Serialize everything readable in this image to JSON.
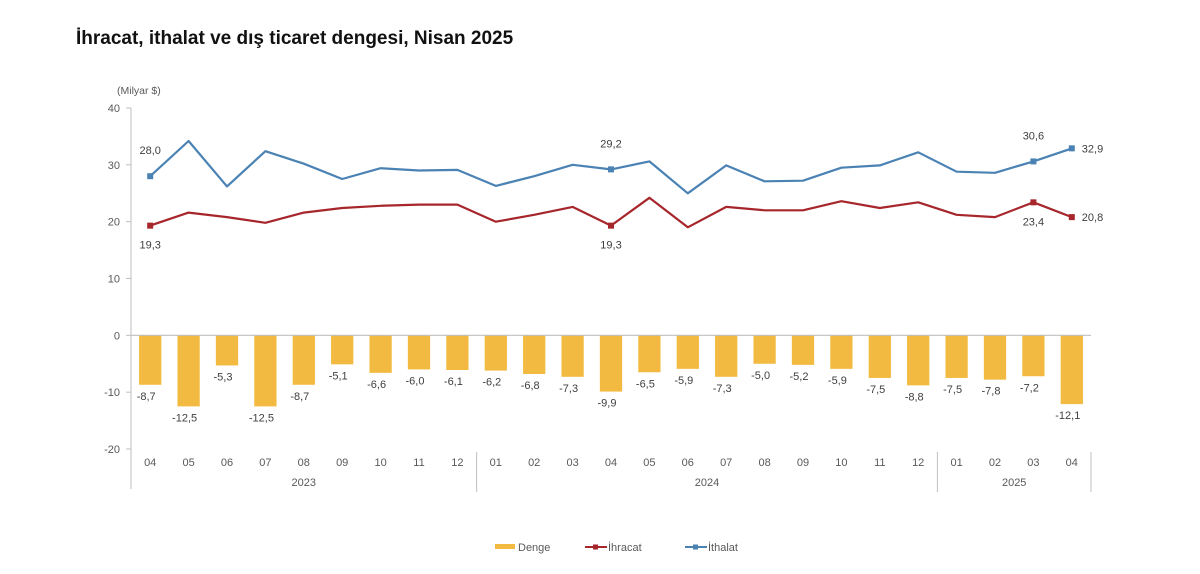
{
  "title": "İhracat, ithalat ve dış ticaret dengesi, Nisan 2025",
  "chart_data": {
    "type": "bar+line",
    "title": "İhracat, ithalat ve dış ticaret dengesi, Nisan 2025",
    "ylabel": "(Milyar $)",
    "xlabel": "",
    "ylim": [
      -20,
      40
    ],
    "yticks": [
      "40",
      "30",
      "20",
      "10",
      "0",
      "-10",
      "-20"
    ],
    "ytick_values": [
      40,
      30,
      20,
      10,
      0,
      -10,
      -20
    ],
    "grid": false,
    "legend_position": "bottom-center",
    "categories": [
      "04",
      "05",
      "06",
      "07",
      "08",
      "09",
      "10",
      "11",
      "12",
      "01",
      "02",
      "03",
      "04",
      "05",
      "06",
      "07",
      "08",
      "09",
      "10",
      "11",
      "12",
      "01",
      "02",
      "03",
      "04"
    ],
    "year_groups": [
      {
        "label": "2023",
        "start": 0,
        "end": 8
      },
      {
        "label": "2024",
        "start": 9,
        "end": 20
      },
      {
        "label": "2025",
        "start": 21,
        "end": 24
      }
    ],
    "series": [
      {
        "name": "Denge",
        "type": "bar",
        "color": "#F2BA41",
        "values": [
          -8.7,
          -12.5,
          -5.3,
          -12.5,
          -8.7,
          -5.1,
          -6.6,
          -6.0,
          -6.1,
          -6.2,
          -6.8,
          -7.3,
          -9.9,
          -6.5,
          -5.9,
          -7.3,
          -5.0,
          -5.2,
          -5.9,
          -7.5,
          -8.8,
          -7.5,
          -7.8,
          -7.2,
          -12.1
        ],
        "labels": [
          "-8,7",
          "-12,5",
          "-5,3",
          "-12,5",
          "-8,7",
          "-5,1",
          "-6,6",
          "-6,0",
          "-6,1",
          "-6,2",
          "-6,8",
          "-7,3",
          "-9,9",
          "-6,5",
          "-5,9",
          "-7,3",
          "-5,0",
          "-5,2",
          "-5,9",
          "-7,5",
          "-8,8",
          "-7,5",
          "-7,8",
          "-7,2",
          "-12,1"
        ]
      },
      {
        "name": "İhracat",
        "type": "line",
        "color": "#A6262B",
        "values": [
          19.3,
          21.6,
          20.8,
          19.8,
          21.6,
          22.4,
          22.8,
          23.0,
          23.0,
          20.0,
          21.2,
          22.6,
          19.3,
          24.2,
          19.0,
          22.6,
          22.0,
          22.0,
          23.6,
          22.4,
          23.4,
          21.2,
          20.8,
          23.4,
          20.8
        ],
        "markers": [
          0,
          12,
          23,
          24
        ],
        "labels": [
          {
            "index": 0,
            "text": "19,3",
            "pos": "below"
          },
          {
            "index": 12,
            "text": "19,3",
            "pos": "below"
          },
          {
            "index": 23,
            "text": "23,4",
            "pos": "below"
          },
          {
            "index": 24,
            "text": "20,8",
            "pos": "right"
          }
        ]
      },
      {
        "name": "İthalat",
        "type": "line",
        "color": "#4A82B4",
        "values": [
          28.0,
          34.2,
          26.2,
          32.4,
          30.2,
          27.5,
          29.4,
          29.0,
          29.1,
          26.3,
          28.0,
          30.0,
          29.2,
          30.6,
          25.0,
          29.9,
          27.1,
          27.2,
          29.5,
          29.9,
          32.2,
          28.8,
          28.6,
          30.6,
          32.9
        ],
        "markers": [
          0,
          12,
          23,
          24
        ],
        "labels": [
          {
            "index": 0,
            "text": "28,0",
            "pos": "above"
          },
          {
            "index": 12,
            "text": "29,2",
            "pos": "above"
          },
          {
            "index": 23,
            "text": "30,6",
            "pos": "above"
          },
          {
            "index": 24,
            "text": "32,9",
            "pos": "right"
          }
        ]
      }
    ],
    "legend": [
      {
        "name": "Denge",
        "kind": "bar",
        "color": "#F2BA41"
      },
      {
        "name": "İhracat",
        "kind": "line",
        "color": "#A6262B"
      },
      {
        "name": "İthalat",
        "kind": "line",
        "color": "#4A82B4"
      }
    ],
    "axis_color": "#BFBFBF"
  }
}
